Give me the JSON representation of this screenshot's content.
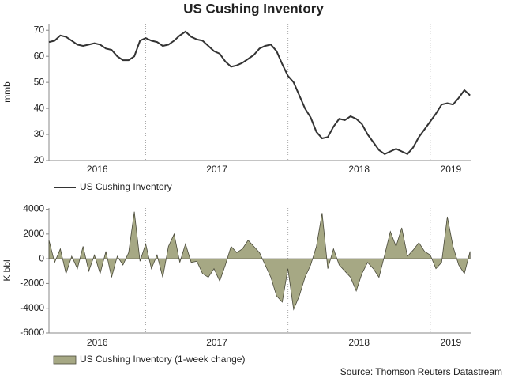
{
  "title": "US Cushing Inventory",
  "source": "Source: Thomson Reuters Datastream",
  "chart_data": [
    {
      "type": "line",
      "ylabel": "mmb",
      "x": [
        2016.32,
        2016.36,
        2016.4,
        2016.44,
        2016.48,
        2016.52,
        2016.56,
        2016.6,
        2016.64,
        2016.68,
        2016.72,
        2016.76,
        2016.8,
        2016.84,
        2016.88,
        2016.92,
        2016.96,
        2017.0,
        2017.04,
        2017.08,
        2017.12,
        2017.16,
        2017.2,
        2017.24,
        2017.28,
        2017.32,
        2017.36,
        2017.4,
        2017.44,
        2017.48,
        2017.52,
        2017.56,
        2017.6,
        2017.64,
        2017.68,
        2017.72,
        2017.76,
        2017.8,
        2017.84,
        2017.88,
        2017.92,
        2017.96,
        2018.0,
        2018.04,
        2018.08,
        2018.12,
        2018.16,
        2018.2,
        2018.24,
        2018.28,
        2018.32,
        2018.36,
        2018.4,
        2018.44,
        2018.48,
        2018.52,
        2018.56,
        2018.6,
        2018.64,
        2018.68,
        2018.72,
        2018.76,
        2018.8,
        2018.84,
        2018.88,
        2018.92,
        2018.96,
        2019.0,
        2019.04,
        2019.08,
        2019.12,
        2019.16,
        2019.2,
        2019.24,
        2019.28
      ],
      "series": [
        {
          "name": "US Cushing Inventory",
          "color": "#333333",
          "values": [
            65.5,
            66,
            68,
            67.5,
            66,
            64.5,
            64,
            64.5,
            65,
            64.5,
            63,
            62.5,
            60,
            58.5,
            58.5,
            60,
            66,
            67,
            66,
            65.5,
            64,
            64.5,
            66,
            68,
            69.5,
            67.5,
            66.5,
            66,
            64,
            62,
            61,
            58,
            56,
            56.5,
            57.5,
            59,
            60.5,
            63,
            64,
            64.5,
            62,
            57,
            52.5,
            50,
            45,
            40,
            36.5,
            31,
            28.5,
            29,
            33,
            36,
            35.5,
            37,
            36,
            34,
            30,
            27,
            24,
            22.5,
            23.5,
            24.5,
            23.5,
            22.5,
            25,
            29,
            32,
            35,
            38,
            41.5,
            42,
            41.5,
            44,
            47,
            45
          ]
        }
      ],
      "xlim": [
        2016.32,
        2019.29
      ],
      "xticks": [
        2016,
        2017,
        2018,
        2019
      ],
      "ylim": [
        20,
        72.5
      ],
      "yticks": [
        20,
        30,
        40,
        50,
        60,
        70
      ]
    },
    {
      "type": "area",
      "ylabel": "K bbl",
      "x": [
        2016.32,
        2016.36,
        2016.4,
        2016.44,
        2016.48,
        2016.52,
        2016.56,
        2016.6,
        2016.64,
        2016.68,
        2016.72,
        2016.76,
        2016.8,
        2016.84,
        2016.88,
        2016.92,
        2016.96,
        2017.0,
        2017.04,
        2017.08,
        2017.12,
        2017.16,
        2017.2,
        2017.24,
        2017.28,
        2017.32,
        2017.36,
        2017.4,
        2017.44,
        2017.48,
        2017.52,
        2017.56,
        2017.6,
        2017.64,
        2017.68,
        2017.72,
        2017.76,
        2017.8,
        2017.84,
        2017.88,
        2017.92,
        2017.96,
        2018.0,
        2018.04,
        2018.08,
        2018.12,
        2018.16,
        2018.2,
        2018.24,
        2018.28,
        2018.32,
        2018.36,
        2018.4,
        2018.44,
        2018.48,
        2018.52,
        2018.56,
        2018.6,
        2018.64,
        2018.68,
        2018.72,
        2018.76,
        2018.8,
        2018.84,
        2018.88,
        2018.92,
        2018.96,
        2019.0,
        2019.04,
        2019.08,
        2019.12,
        2019.16,
        2019.2,
        2019.24,
        2019.28
      ],
      "series": [
        {
          "name": "US Cushing Inventory (1-week change)",
          "color": "#a6a884",
          "values": [
            1500,
            -300,
            800,
            -1200,
            200,
            -800,
            1000,
            -1000,
            300,
            -1200,
            600,
            -1500,
            200,
            -500,
            500,
            3800,
            -200,
            1200,
            -800,
            300,
            -1500,
            1000,
            2000,
            -300,
            1200,
            -300,
            -200,
            -1200,
            -1500,
            -800,
            -1800,
            -500,
            1000,
            500,
            800,
            1500,
            1000,
            500,
            -500,
            -1500,
            -3000,
            -3500,
            -800,
            -4100,
            -3000,
            -1500,
            -500,
            1000,
            3700,
            -800,
            800,
            -500,
            -1000,
            -1500,
            -2600,
            -1200,
            -300,
            -800,
            -1500,
            300,
            2200,
            1000,
            2500,
            200,
            700,
            1300,
            600,
            300,
            -800,
            -300,
            3400,
            1000,
            -500,
            -1200,
            600
          ]
        }
      ],
      "xlim": [
        2016.32,
        2019.29
      ],
      "xticks": [
        2016,
        2017,
        2018,
        2019
      ],
      "ylim": [
        -6000,
        4100
      ],
      "yticks": [
        -6000,
        -4000,
        -2000,
        0,
        2000,
        4000
      ]
    }
  ]
}
